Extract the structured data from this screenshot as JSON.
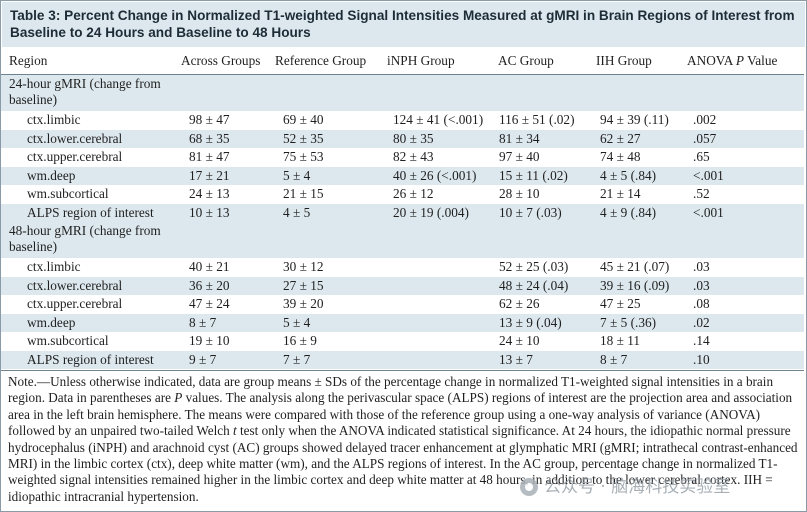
{
  "table": {
    "title": "Table 3: Percent Change in Normalized T1-weighted Signal Intensities Measured at gMRI in Brain Regions of Interest from Baseline to 24 Hours and Baseline to 48 Hours",
    "headers": {
      "region": "Region",
      "across": "Across Groups",
      "reference": "Reference Group",
      "inph": "iNPH Group",
      "ac": "AC Group",
      "iih": "IIH Group",
      "anova_prefix": "ANOVA ",
      "anova_p": "P",
      "anova_suffix": " Value"
    },
    "section24": "24-hour gMRI (change from baseline)",
    "rows24": [
      {
        "region": "ctx.limbic",
        "across": "98 ± 47",
        "reference": "69 ± 40",
        "inph": "124 ± 41 (<.001)",
        "ac": "116 ± 51 (.02)",
        "iih": "94 ± 39 (.11)",
        "p": ".002"
      },
      {
        "region": "ctx.lower.cerebral",
        "across": "68 ± 35",
        "reference": "52 ± 35",
        "inph": "80 ± 35",
        "ac": "81 ± 34",
        "iih": "62 ± 27",
        "p": ".057"
      },
      {
        "region": "ctx.upper.cerebral",
        "across": "81 ± 47",
        "reference": "75 ± 53",
        "inph": "82 ± 43",
        "ac": "97 ± 40",
        "iih": "74 ± 48",
        "p": ".65"
      },
      {
        "region": "wm.deep",
        "across": "17 ± 21",
        "reference": "5 ± 4",
        "inph": "40 ± 26 (<.001)",
        "ac": "15 ± 11 (.02)",
        "iih": "4 ± 5 (.84)",
        "p": "<.001"
      },
      {
        "region": "wm.subcortical",
        "across": "24 ± 13",
        "reference": "21 ± 15",
        "inph": "26 ± 12",
        "ac": "28 ± 10",
        "iih": "21 ± 14",
        "p": ".52"
      },
      {
        "region": "ALPS region of interest",
        "across": "10 ± 13",
        "reference": "4 ± 5",
        "inph": "20 ± 19 (.004)",
        "ac": "10 ± 7 (.03)",
        "iih": "4 ± 9 (.84)",
        "p": "<.001"
      }
    ],
    "section48": "48-hour gMRI (change from baseline)",
    "rows48": [
      {
        "region": "ctx.limbic",
        "across": "40 ± 21",
        "reference": "30 ± 12",
        "inph": "",
        "ac": "52 ± 25 (.03)",
        "iih": "45 ± 21 (.07)",
        "p": ".03"
      },
      {
        "region": "ctx.lower.cerebral",
        "across": "36 ± 20",
        "reference": "27 ± 15",
        "inph": "",
        "ac": "48 ± 24 (.04)",
        "iih": "39 ± 16 (.09)",
        "p": ".03"
      },
      {
        "region": "ctx.upper.cerebral",
        "across": "47 ± 24",
        "reference": "39 ± 20",
        "inph": "",
        "ac": "62 ± 26",
        "iih": "47 ± 25",
        "p": ".08"
      },
      {
        "region": "wm.deep",
        "across": "8 ± 7",
        "reference": "5 ± 4",
        "inph": "",
        "ac": "13 ± 9 (.04)",
        "iih": "7 ± 5 (.36)",
        "p": ".02"
      },
      {
        "region": "wm.subcortical",
        "across": "19 ± 10",
        "reference": "16 ± 9",
        "inph": "",
        "ac": "24 ± 10",
        "iih": "18 ± 11",
        "p": ".14"
      },
      {
        "region": "ALPS region of interest",
        "across": "9 ± 7",
        "reference": "7 ± 7",
        "inph": "",
        "ac": "13 ± 7",
        "iih": "8 ± 7",
        "p": ".10"
      }
    ],
    "note": {
      "part1": "Note.—Unless otherwise indicated, data are group means ± SDs of the percentage change in normalized T1-weighted signal intensities in a brain region. Data in parentheses are ",
      "p_italic": "P",
      "part2": " values. The analysis along the perivascular space (ALPS) regions of interest are the projection area and association area in the left brain hemisphere. The means were compared with those of the reference group using a one-way analysis of variance (ANOVA) followed by an unpaired two-tailed Welch ",
      "t_italic": "t",
      "part3": " test only when the ANOVA indicated statistical significance. At 24 hours, the idiopathic normal pressure hydrocephalus (iNPH) and arachnoid cyst (AC) groups showed delayed tracer enhancement at glymphatic MRI (gMRI; intrathecal contrast-enhanced MRI) in the limbic cortex (ctx), deep white matter (wm), and the ALPS regions of interest. In the AC group, percentage change in normalized T1-weighted signal intensities remained higher in the limbic cortex and deep white matter at 48 hours, in addition to the lower cerebral cortex. IIH = idiopathic intracranial hypertension."
    },
    "watermark": "公众号 · 脑海科技实验室"
  }
}
